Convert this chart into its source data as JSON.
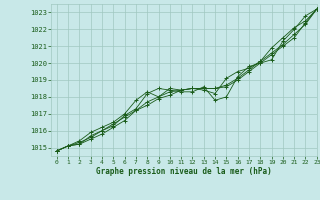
{
  "title": "Graphe pression niveau de la mer (hPa)",
  "bg_color": "#c8e8e8",
  "grid_color": "#a0c8c0",
  "line_color": "#1a5c1a",
  "xlim": [
    -0.5,
    23
  ],
  "ylim": [
    1014.5,
    1023.5
  ],
  "yticks": [
    1015,
    1016,
    1017,
    1018,
    1019,
    1020,
    1021,
    1022,
    1023
  ],
  "xticks": [
    0,
    1,
    2,
    3,
    4,
    5,
    6,
    7,
    8,
    9,
    10,
    11,
    12,
    13,
    14,
    15,
    16,
    17,
    18,
    19,
    20,
    21,
    22,
    23
  ],
  "series1": [
    1014.8,
    1015.1,
    1015.2,
    1015.5,
    1015.8,
    1016.2,
    1016.6,
    1017.2,
    1017.5,
    1017.9,
    1018.1,
    1018.4,
    1018.5,
    1018.5,
    1018.5,
    1018.6,
    1019.0,
    1019.5,
    1020.0,
    1020.5,
    1021.0,
    1021.5,
    1022.4,
    1023.2
  ],
  "series2": [
    1014.8,
    1015.1,
    1015.2,
    1015.7,
    1016.0,
    1016.3,
    1016.9,
    1017.3,
    1018.2,
    1018.5,
    1018.4,
    1018.3,
    1018.3,
    1018.6,
    1017.8,
    1018.0,
    1019.2,
    1019.8,
    1020.0,
    1020.2,
    1021.3,
    1022.0,
    1022.8,
    1023.2
  ],
  "series3": [
    1014.8,
    1015.1,
    1015.4,
    1015.9,
    1016.2,
    1016.5,
    1017.0,
    1017.8,
    1018.3,
    1018.0,
    1018.5,
    1018.4,
    1018.5,
    1018.4,
    1018.2,
    1019.1,
    1019.5,
    1019.7,
    1020.1,
    1020.9,
    1021.5,
    1022.1,
    1022.5,
    1023.2
  ],
  "series4": [
    1014.8,
    1015.1,
    1015.3,
    1015.6,
    1016.0,
    1016.4,
    1016.8,
    1017.2,
    1017.7,
    1018.0,
    1018.3,
    1018.4,
    1018.5,
    1018.5,
    1018.5,
    1018.7,
    1019.1,
    1019.6,
    1020.1,
    1020.6,
    1021.1,
    1021.7,
    1022.3,
    1023.2
  ]
}
